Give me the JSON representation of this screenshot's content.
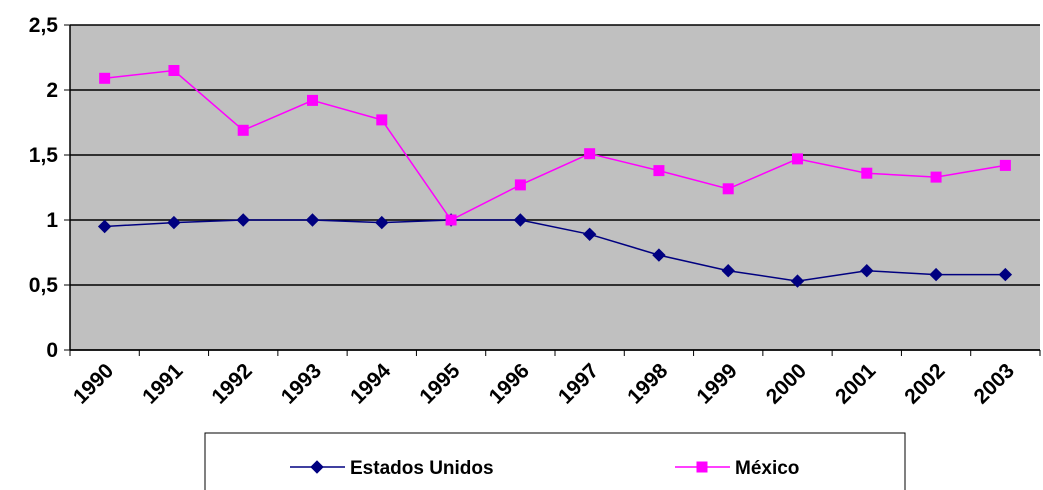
{
  "chart_data": {
    "type": "line",
    "categories": [
      "1990",
      "1991",
      "1992",
      "1993",
      "1994",
      "1995",
      "1996",
      "1997",
      "1998",
      "1999",
      "2000",
      "2001",
      "2002",
      "2003"
    ],
    "series": [
      {
        "name": "Estados Unidos",
        "color": "#000080",
        "values": [
          0.95,
          0.98,
          1.0,
          1.0,
          0.98,
          1.0,
          1.0,
          0.89,
          0.73,
          0.61,
          0.53,
          0.61,
          0.58,
          0.58
        ]
      },
      {
        "name": "México",
        "color": "#ff00ff",
        "values": [
          2.09,
          2.15,
          1.69,
          1.92,
          1.77,
          1.0,
          1.27,
          1.51,
          1.38,
          1.24,
          1.47,
          1.36,
          1.33,
          1.42
        ]
      }
    ],
    "ylim": [
      0,
      2.5
    ],
    "yticks": [
      0,
      {
        "value": 0.5,
        "label": "0,5"
      },
      1,
      {
        "value": 1.5,
        "label": "1,5"
      },
      2,
      {
        "value": 2.5,
        "label": "2,5"
      }
    ],
    "grid": true,
    "legend": "bottom"
  }
}
